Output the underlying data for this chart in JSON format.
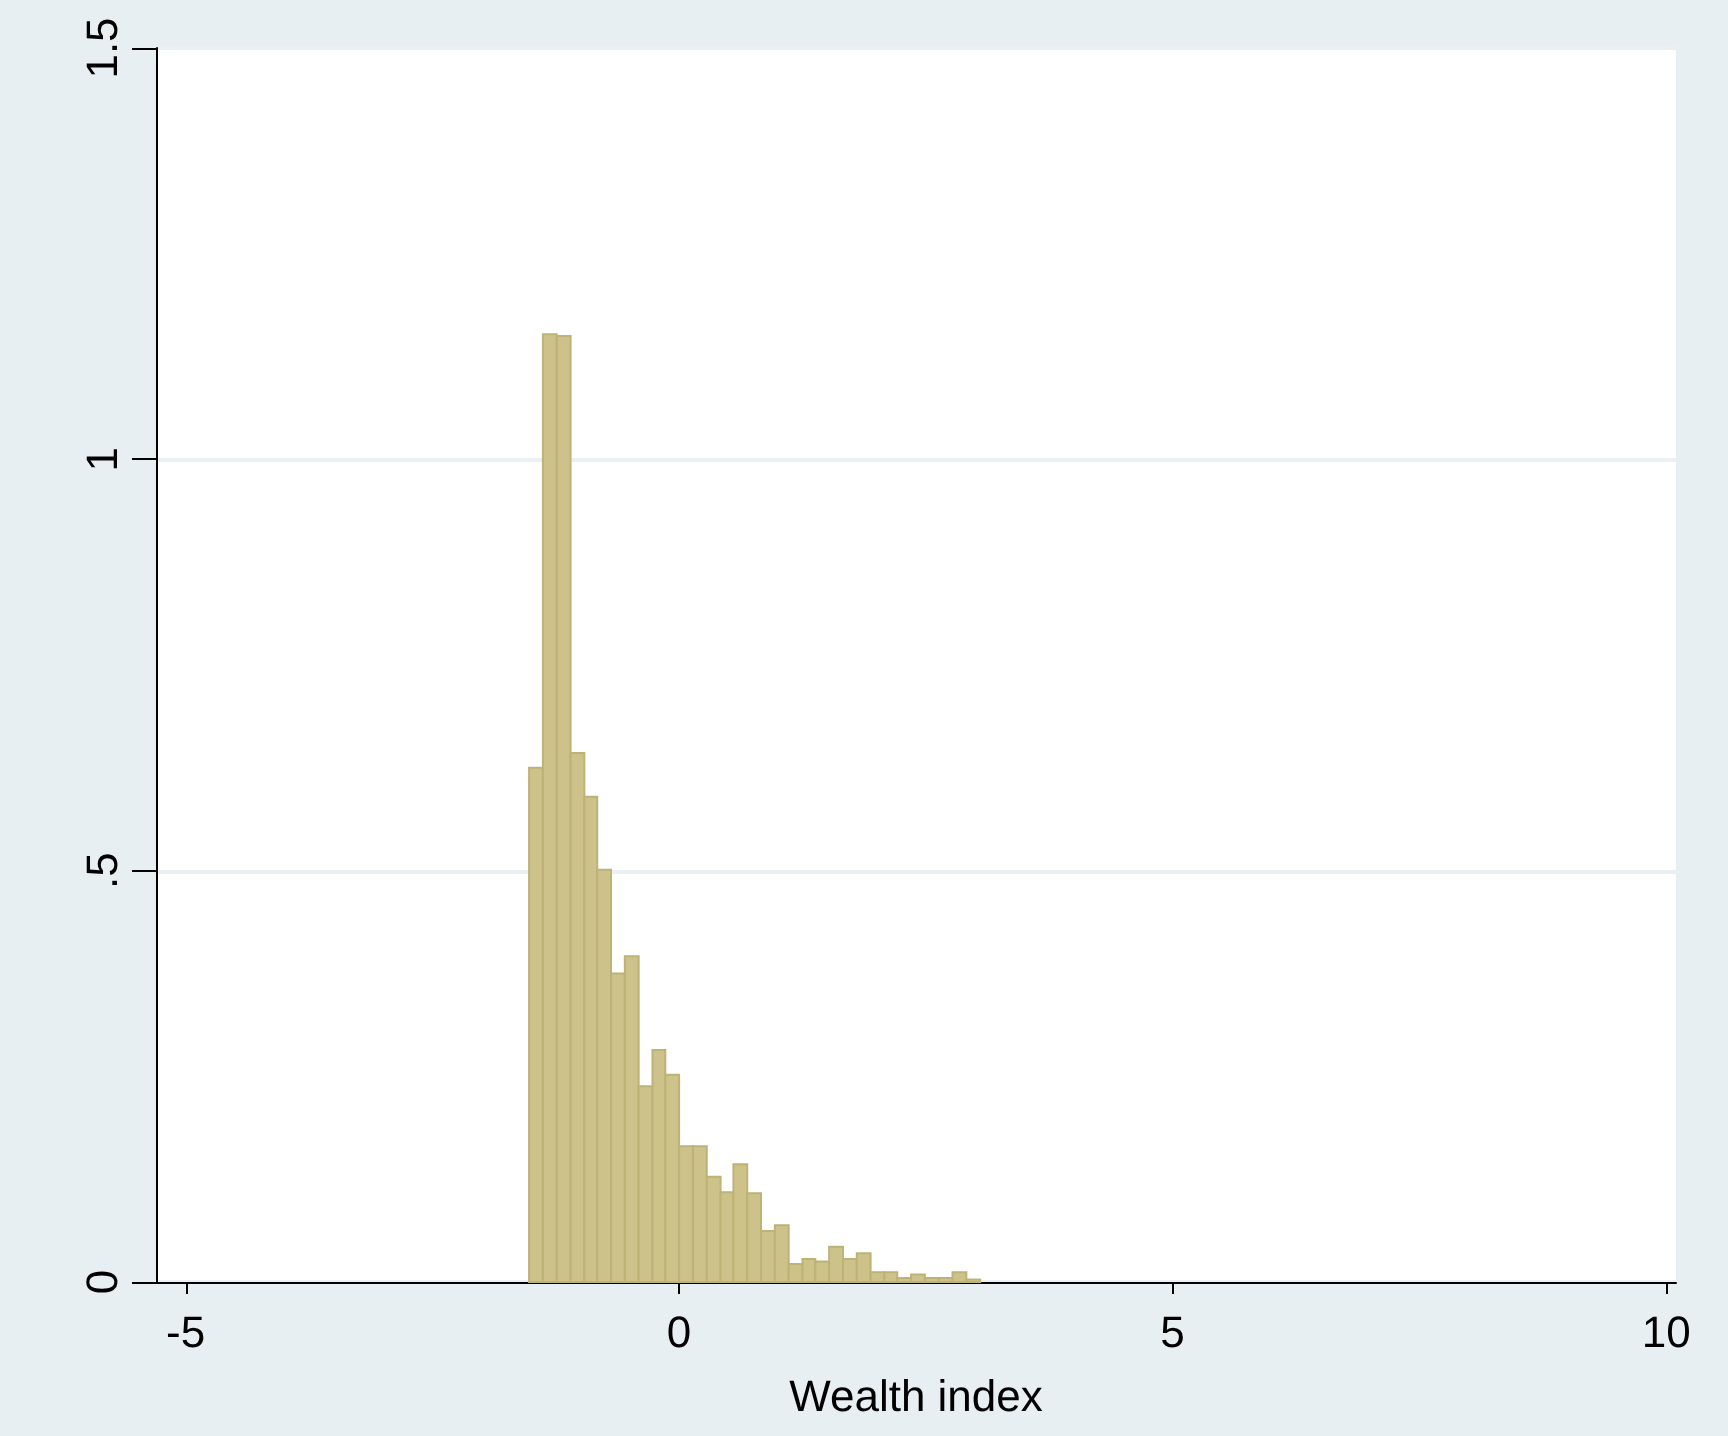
{
  "chart_data": {
    "type": "histogram",
    "xlabel": "Wealth index",
    "color": "#cdc38a",
    "bins": [
      -1.52,
      -1.38,
      -1.24,
      -1.1,
      -0.96,
      -0.83,
      -0.69,
      -0.55,
      -0.41,
      -0.27,
      -0.14,
      0.0,
      0.14,
      0.28,
      0.42,
      0.55,
      0.69,
      0.83,
      0.97,
      1.11,
      1.25,
      1.38,
      1.52,
      1.66,
      1.8,
      1.94,
      2.08,
      2.21,
      2.35,
      2.49,
      2.63,
      2.77,
      2.91,
      3.05
    ],
    "values": [
      0.625,
      1.152,
      1.15,
      0.643,
      0.59,
      0.501,
      0.375,
      0.396,
      0.238,
      0.282,
      0.252,
      0.165,
      0.165,
      0.128,
      0.109,
      0.143,
      0.108,
      0.062,
      0.069,
      0.022,
      0.028,
      0.025,
      0.043,
      0.028,
      0.035,
      0.012,
      0.012,
      0.005,
      0.009,
      0.005,
      0.005,
      0.012,
      0.003
    ],
    "xlim": [
      -5.3,
      10.1
    ],
    "xticks": [
      -5,
      0,
      5,
      10
    ],
    "ylim": [
      0,
      1.5
    ],
    "yticks": [
      0,
      {
        "value": 0.5,
        "label": ".5"
      },
      1,
      1.5
    ],
    "grid": "y"
  }
}
